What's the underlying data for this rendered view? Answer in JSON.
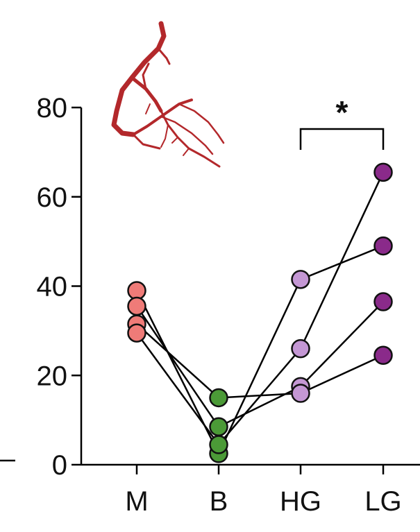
{
  "chart_data": {
    "type": "scatter",
    "paired": true,
    "categories": [
      "M",
      "B",
      "HG",
      "LG"
    ],
    "ylim": [
      0,
      80
    ],
    "yticks": [
      0,
      20,
      40,
      60,
      80
    ],
    "grid": false,
    "xlabel": "",
    "ylabel": "",
    "subjects": [
      {
        "values": [
          39,
          2.5,
          41.5,
          49
        ]
      },
      {
        "values": [
          35.5,
          8.5,
          17.5,
          36.5
        ]
      },
      {
        "values": [
          31.5,
          15,
          16,
          24.5
        ]
      },
      {
        "values": [
          29.5,
          4.5,
          26,
          65.5
        ]
      }
    ],
    "colors": {
      "M": "#ef7b78",
      "B": "#4b9a37",
      "HG": "#c497d4",
      "LG": "#8a2a8a",
      "line": "#000000",
      "axis": "#000000",
      "vessel": "#b3282b"
    },
    "annotations": [
      {
        "text": "*",
        "between": [
          "HG",
          "LG"
        ]
      }
    ],
    "icon": "blood-vessel-icon"
  }
}
